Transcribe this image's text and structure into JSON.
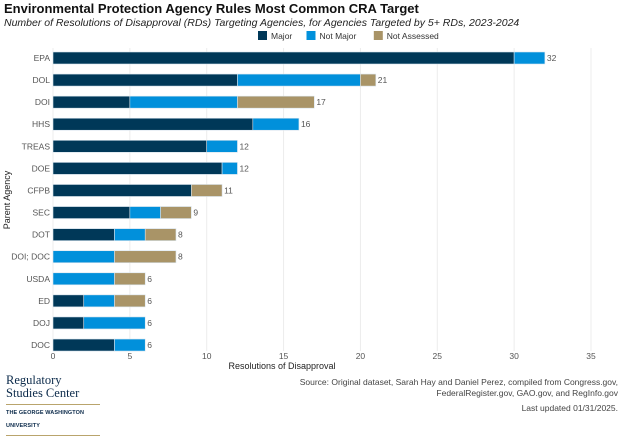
{
  "chart_data": {
    "type": "bar",
    "orientation": "horizontal",
    "stacked": true,
    "title": "Environmental Protection Agency Rules Most Common CRA Target",
    "subtitle": "Number of Resolutions of Disapproval (RDs) Targeting Agencies, for Agencies Targeted by 5+ RDs, 2023-2024",
    "xlabel": "Resolutions of Disapproval",
    "ylabel": "Parent Agency",
    "xlim": [
      0,
      35
    ],
    "xticks": [
      0,
      5,
      10,
      15,
      20,
      25,
      30,
      35
    ],
    "grid": true,
    "legend_position": "top",
    "categories": [
      "EPA",
      "DOL",
      "DOI",
      "HHS",
      "TREAS",
      "DOE",
      "CFPB",
      "SEC",
      "DOT",
      "DOI; DOC",
      "USDA",
      "ED",
      "DOJ",
      "DOC"
    ],
    "totals": [
      32,
      21,
      17,
      16,
      12,
      12,
      11,
      9,
      8,
      8,
      6,
      6,
      6,
      6
    ],
    "series": [
      {
        "name": "Major",
        "color": "#003858",
        "values": [
          30,
          12,
          5,
          13,
          10,
          11,
          9,
          5,
          4,
          0,
          0,
          2,
          2,
          4
        ]
      },
      {
        "name": "Not Major",
        "color": "#0190db",
        "values": [
          2,
          8,
          7,
          3,
          2,
          1,
          0,
          2,
          2,
          4,
          4,
          2,
          4,
          2
        ]
      },
      {
        "name": "Not Assessed",
        "color": "#a99467",
        "values": [
          0,
          1,
          5,
          0,
          0,
          0,
          2,
          2,
          2,
          4,
          2,
          2,
          0,
          0
        ]
      }
    ]
  },
  "footer": {
    "logo_line1": "Regulatory",
    "logo_line2": "Studies Center",
    "logo_line3": "THE GEORGE WASHINGTON UNIVERSITY",
    "source_line1": "Source: Original dataset, Sarah Hay and Daniel Perez, compiled from Congress.gov,",
    "source_line2": "FederalRegister.gov, GAO.gov, and RegInfo.gov",
    "updated": "Last updated 01/31/2025."
  }
}
